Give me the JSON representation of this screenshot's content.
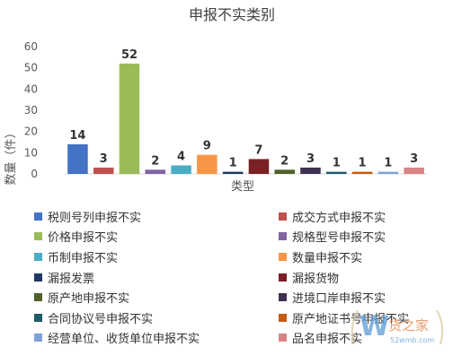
{
  "chart_data": {
    "type": "bar",
    "title": "申报不实类别",
    "xlabel": "类型",
    "ylabel": "数量（件）",
    "ylim": [
      0,
      60
    ],
    "yticks": [
      0,
      10,
      20,
      30,
      40,
      50,
      60
    ],
    "grid": false,
    "legend_position": "bottom",
    "data_labels": true,
    "categories": [
      "税则号列申报不实",
      "成交方式申报不实",
      "价格申报不实",
      "规格型号申报不实",
      "币制申报不实",
      "数量申报不实",
      "漏报发票",
      "漏报货物",
      "原产地申报不实",
      "进境口岸申报不实",
      "合同协议号申报不实",
      "原产地证书号申报不实",
      "经营单位、收货单位申报不实",
      "品名申报不实"
    ],
    "values": [
      14,
      3,
      52,
      2,
      4,
      9,
      1,
      7,
      2,
      3,
      1,
      1,
      1,
      3
    ],
    "colors": [
      "#4472C4",
      "#C0504D",
      "#9BBB59",
      "#8064A2",
      "#4BACC6",
      "#F79646",
      "#1F3864",
      "#7B2024",
      "#4F6228",
      "#3F3151",
      "#215967",
      "#C55A11",
      "#7FA2D6",
      "#D98583"
    ]
  },
  "watermark": {
    "name": "货之家",
    "url": "52wmb.com"
  }
}
